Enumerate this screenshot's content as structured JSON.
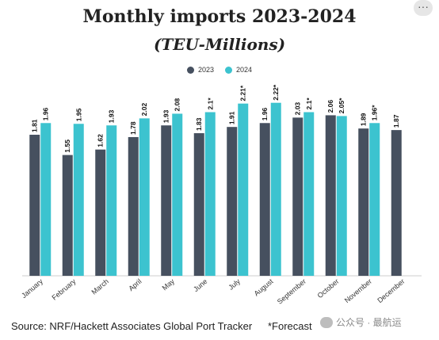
{
  "header": {
    "title": "Monthly imports 2023-2024",
    "subtitle": "(TEU-Millions)",
    "more_icon": "more-horizontal-icon"
  },
  "footer": {
    "source": "Source: NRF/Hackett Associates Global Port Tracker",
    "forecast_note": "*Forecast"
  },
  "watermark": {
    "text": "公众号 · 最航运",
    "icon": "wechat-logo-icon"
  },
  "chart_data": {
    "type": "bar",
    "title": "Monthly imports 2023-2024",
    "subtitle": "(TEU-Millions)",
    "xlabel": "",
    "ylabel": "",
    "categories": [
      "January",
      "February",
      "March",
      "April",
      "May",
      "June",
      "July",
      "August",
      "September",
      "October",
      "November",
      "December"
    ],
    "series": [
      {
        "name": "2023",
        "color": "#46505f",
        "values": [
          1.81,
          1.55,
          1.62,
          1.78,
          1.93,
          1.83,
          1.91,
          1.96,
          2.03,
          2.06,
          1.89,
          1.87
        ],
        "labels": [
          "1.81",
          "1.55",
          "1.62",
          "1.78",
          "1.93",
          "1.83",
          "1.91",
          "1.96",
          "2.03",
          "2.06",
          "1.89",
          "1.87"
        ]
      },
      {
        "name": "2024",
        "color": "#3cc3cf",
        "values": [
          1.96,
          1.95,
          1.93,
          2.02,
          2.08,
          2.1,
          2.21,
          2.22,
          2.1,
          2.05,
          1.96,
          null
        ],
        "labels": [
          "1.96",
          "1.95",
          "1.93",
          "2.02",
          "2.08",
          "2.1*",
          "2.21*",
          "2.22*",
          "2.1*",
          "2.05*",
          "1.96*",
          null
        ]
      }
    ],
    "ylim": [
      0,
      2.4
    ],
    "grid": false,
    "legend_position": "top-center"
  }
}
